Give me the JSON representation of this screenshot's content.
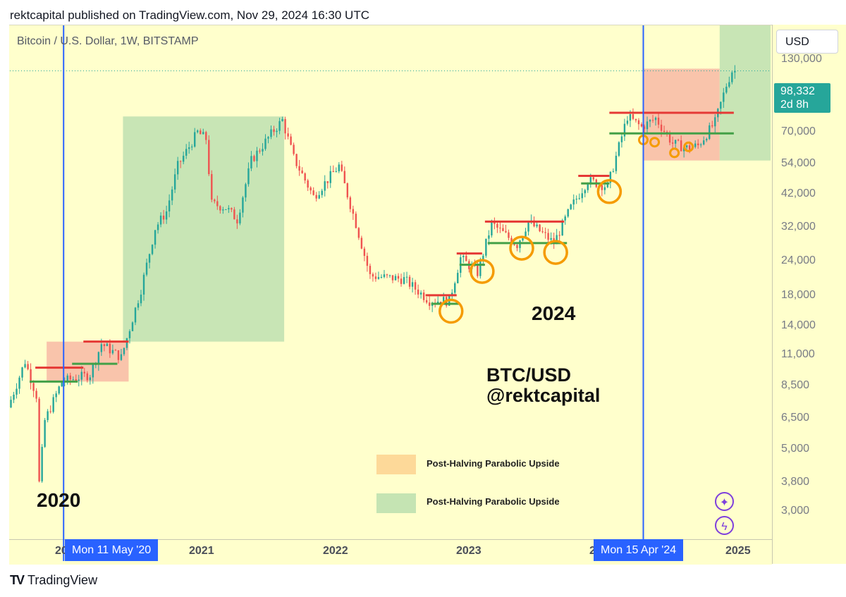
{
  "header": {
    "publisher_line": "rektcapital published on TradingView.com, Nov 29, 2024 16:30 UTC"
  },
  "chart": {
    "symbol_title": "Bitcoin / U.S. Dollar, 1W, BITSTAMP",
    "currency": "USD",
    "last_price": "98,332",
    "countdown": "2d 8h"
  },
  "y_axis": {
    "ticks": [
      "130,000",
      "70,000",
      "54,000",
      "42,000",
      "32,000",
      "24,000",
      "18,000",
      "14,000",
      "11,000",
      "8,500",
      "6,500",
      "5,000",
      "3,800",
      "3,000"
    ]
  },
  "x_axis": {
    "ticks": [
      "20",
      "2021",
      "2022",
      "2023",
      "2",
      "2025"
    ],
    "date_chips": [
      "Mon 11 May '20",
      "Mon 15 Apr '24"
    ]
  },
  "annotations": {
    "label_2020": "2020",
    "label_2024": "2024",
    "watermark_line1": "BTC/USD",
    "watermark_line2": "@rektcapital"
  },
  "legend": [
    {
      "label": "Post-Halving Parabolic Upside",
      "color": "#fdd999"
    },
    {
      "label": "Post-Halving Parabolic Upside",
      "color": "#c5e4b3"
    }
  ],
  "icons": {
    "sparkle": "sparkle-icon",
    "lightning": "lightning-icon"
  },
  "footer": {
    "brand": "TradingView",
    "logo_mark": "TV"
  },
  "colors": {
    "background": "#ffffcc",
    "up": "#26a69a",
    "down": "#ef5350",
    "halving_line": "#2962ff",
    "green_zone": "#c5e4b3",
    "red_zone": "#f8baa4",
    "resistance": "#e53935",
    "support": "#43a047",
    "circle": "#f59b00"
  },
  "chart_data": {
    "type": "candlestick",
    "title": "Bitcoin / U.S. Dollar, 1W, BITSTAMP",
    "y_scale": "log",
    "ylim": [
      2600,
      140000
    ],
    "x_range": [
      "2019-12-30",
      "2025-02-24"
    ],
    "last_price": 98332,
    "price_path": [
      [
        "2019-12-30",
        7200
      ],
      [
        "2020-02-10",
        10300
      ],
      [
        "2020-03-09",
        7900
      ],
      [
        "2020-03-16",
        4000
      ],
      [
        "2020-03-30",
        6500
      ],
      [
        "2020-05-11",
        8800
      ],
      [
        "2020-07-20",
        9300
      ],
      [
        "2020-08-17",
        11800
      ],
      [
        "2020-10-05",
        10600
      ],
      [
        "2020-11-23",
        18000
      ],
      [
        "2020-12-28",
        29000
      ],
      [
        "2021-01-25",
        33000
      ],
      [
        "2021-02-22",
        47000
      ],
      [
        "2021-04-12",
        61000
      ],
      [
        "2021-05-03",
        58000
      ],
      [
        "2021-05-17",
        35000
      ],
      [
        "2021-06-21",
        34000
      ],
      [
        "2021-07-19",
        31000
      ],
      [
        "2021-08-23",
        49000
      ],
      [
        "2021-10-18",
        62000
      ],
      [
        "2021-11-08",
        67000
      ],
      [
        "2021-12-06",
        50000
      ],
      [
        "2022-01-24",
        37000
      ],
      [
        "2022-03-28",
        47000
      ],
      [
        "2022-05-09",
        30000
      ],
      [
        "2022-06-13",
        20000
      ],
      [
        "2022-09-05",
        19500
      ],
      [
        "2022-11-07",
        16500
      ],
      [
        "2022-12-26",
        16500
      ],
      [
        "2023-01-23",
        23000
      ],
      [
        "2023-03-06",
        20500
      ],
      [
        "2023-04-10",
        30000
      ],
      [
        "2023-06-12",
        25500
      ],
      [
        "2023-07-10",
        30500
      ],
      [
        "2023-09-11",
        25800
      ],
      [
        "2023-10-23",
        34000
      ],
      [
        "2023-12-04",
        42000
      ],
      [
        "2024-01-22",
        40000
      ],
      [
        "2024-03-11",
        69000
      ],
      [
        "2024-04-15",
        63500
      ],
      [
        "2024-05-20",
        68000
      ],
      [
        "2024-07-01",
        56000
      ],
      [
        "2024-08-05",
        54000
      ],
      [
        "2024-09-02",
        55000
      ],
      [
        "2024-10-14",
        66000
      ],
      [
        "2024-11-11",
        88000
      ],
      [
        "2024-11-25",
        98332
      ]
    ],
    "vertical_lines": [
      "2020-05-11",
      "2024-04-15"
    ],
    "shaded_zones": [
      {
        "color": "green",
        "from": "2020-10-05",
        "to": "2021-11-08",
        "low": 12000,
        "high": 69000
      },
      {
        "color": "red",
        "from": "2020-03-30",
        "to": "2020-10-19",
        "low": 8800,
        "high": 12000
      },
      {
        "color": "red",
        "from": "2024-04-15",
        "to": "2024-10-21",
        "low": 49000,
        "high": 100000
      },
      {
        "color": "green",
        "from": "2024-10-21",
        "to": "2025-02-24",
        "low": 49000,
        "high": 140000
      }
    ],
    "resistance_levels": [
      {
        "from": "2020-03-02",
        "to": "2020-06-29",
        "price": 9800
      },
      {
        "from": "2020-06-29",
        "to": "2020-10-19",
        "price": 12000
      },
      {
        "from": "2022-10-24",
        "to": "2023-01-09",
        "price": 17200
      },
      {
        "from": "2023-01-09",
        "to": "2023-03-13",
        "price": 23800
      },
      {
        "from": "2023-03-20",
        "to": "2023-10-02",
        "price": 30500
      },
      {
        "from": "2023-11-06",
        "to": "2024-01-22",
        "price": 43500
      },
      {
        "from": "2024-01-22",
        "to": "2024-11-25",
        "price": 71000
      }
    ],
    "support_levels": [
      {
        "from": "2020-02-17",
        "to": "2020-06-15",
        "price": 8800
      },
      {
        "from": "2020-06-01",
        "to": "2020-09-21",
        "price": 10100
      },
      {
        "from": "2022-11-07",
        "to": "2023-01-16",
        "price": 16100
      },
      {
        "from": "2023-01-16",
        "to": "2023-03-20",
        "price": 21800
      },
      {
        "from": "2023-03-27",
        "to": "2023-10-09",
        "price": 25800
      },
      {
        "from": "2023-11-13",
        "to": "2024-01-22",
        "price": 41000
      },
      {
        "from": "2024-01-22",
        "to": "2024-11-25",
        "price": 60500
      }
    ],
    "circles": [
      {
        "x": "2022-12-26",
        "y": 15200,
        "size": "large"
      },
      {
        "x": "2023-03-13",
        "y": 20700,
        "size": "large"
      },
      {
        "x": "2023-06-19",
        "y": 24800,
        "size": "large"
      },
      {
        "x": "2023-09-11",
        "y": 24000,
        "size": "large"
      },
      {
        "x": "2024-01-22",
        "y": 38500,
        "size": "large"
      },
      {
        "x": "2024-04-15",
        "y": 57500,
        "size": "small"
      },
      {
        "x": "2024-05-13",
        "y": 56500,
        "size": "small"
      },
      {
        "x": "2024-07-01",
        "y": 52000,
        "size": "small"
      },
      {
        "x": "2024-08-05",
        "y": 54500,
        "size": "small"
      }
    ]
  }
}
